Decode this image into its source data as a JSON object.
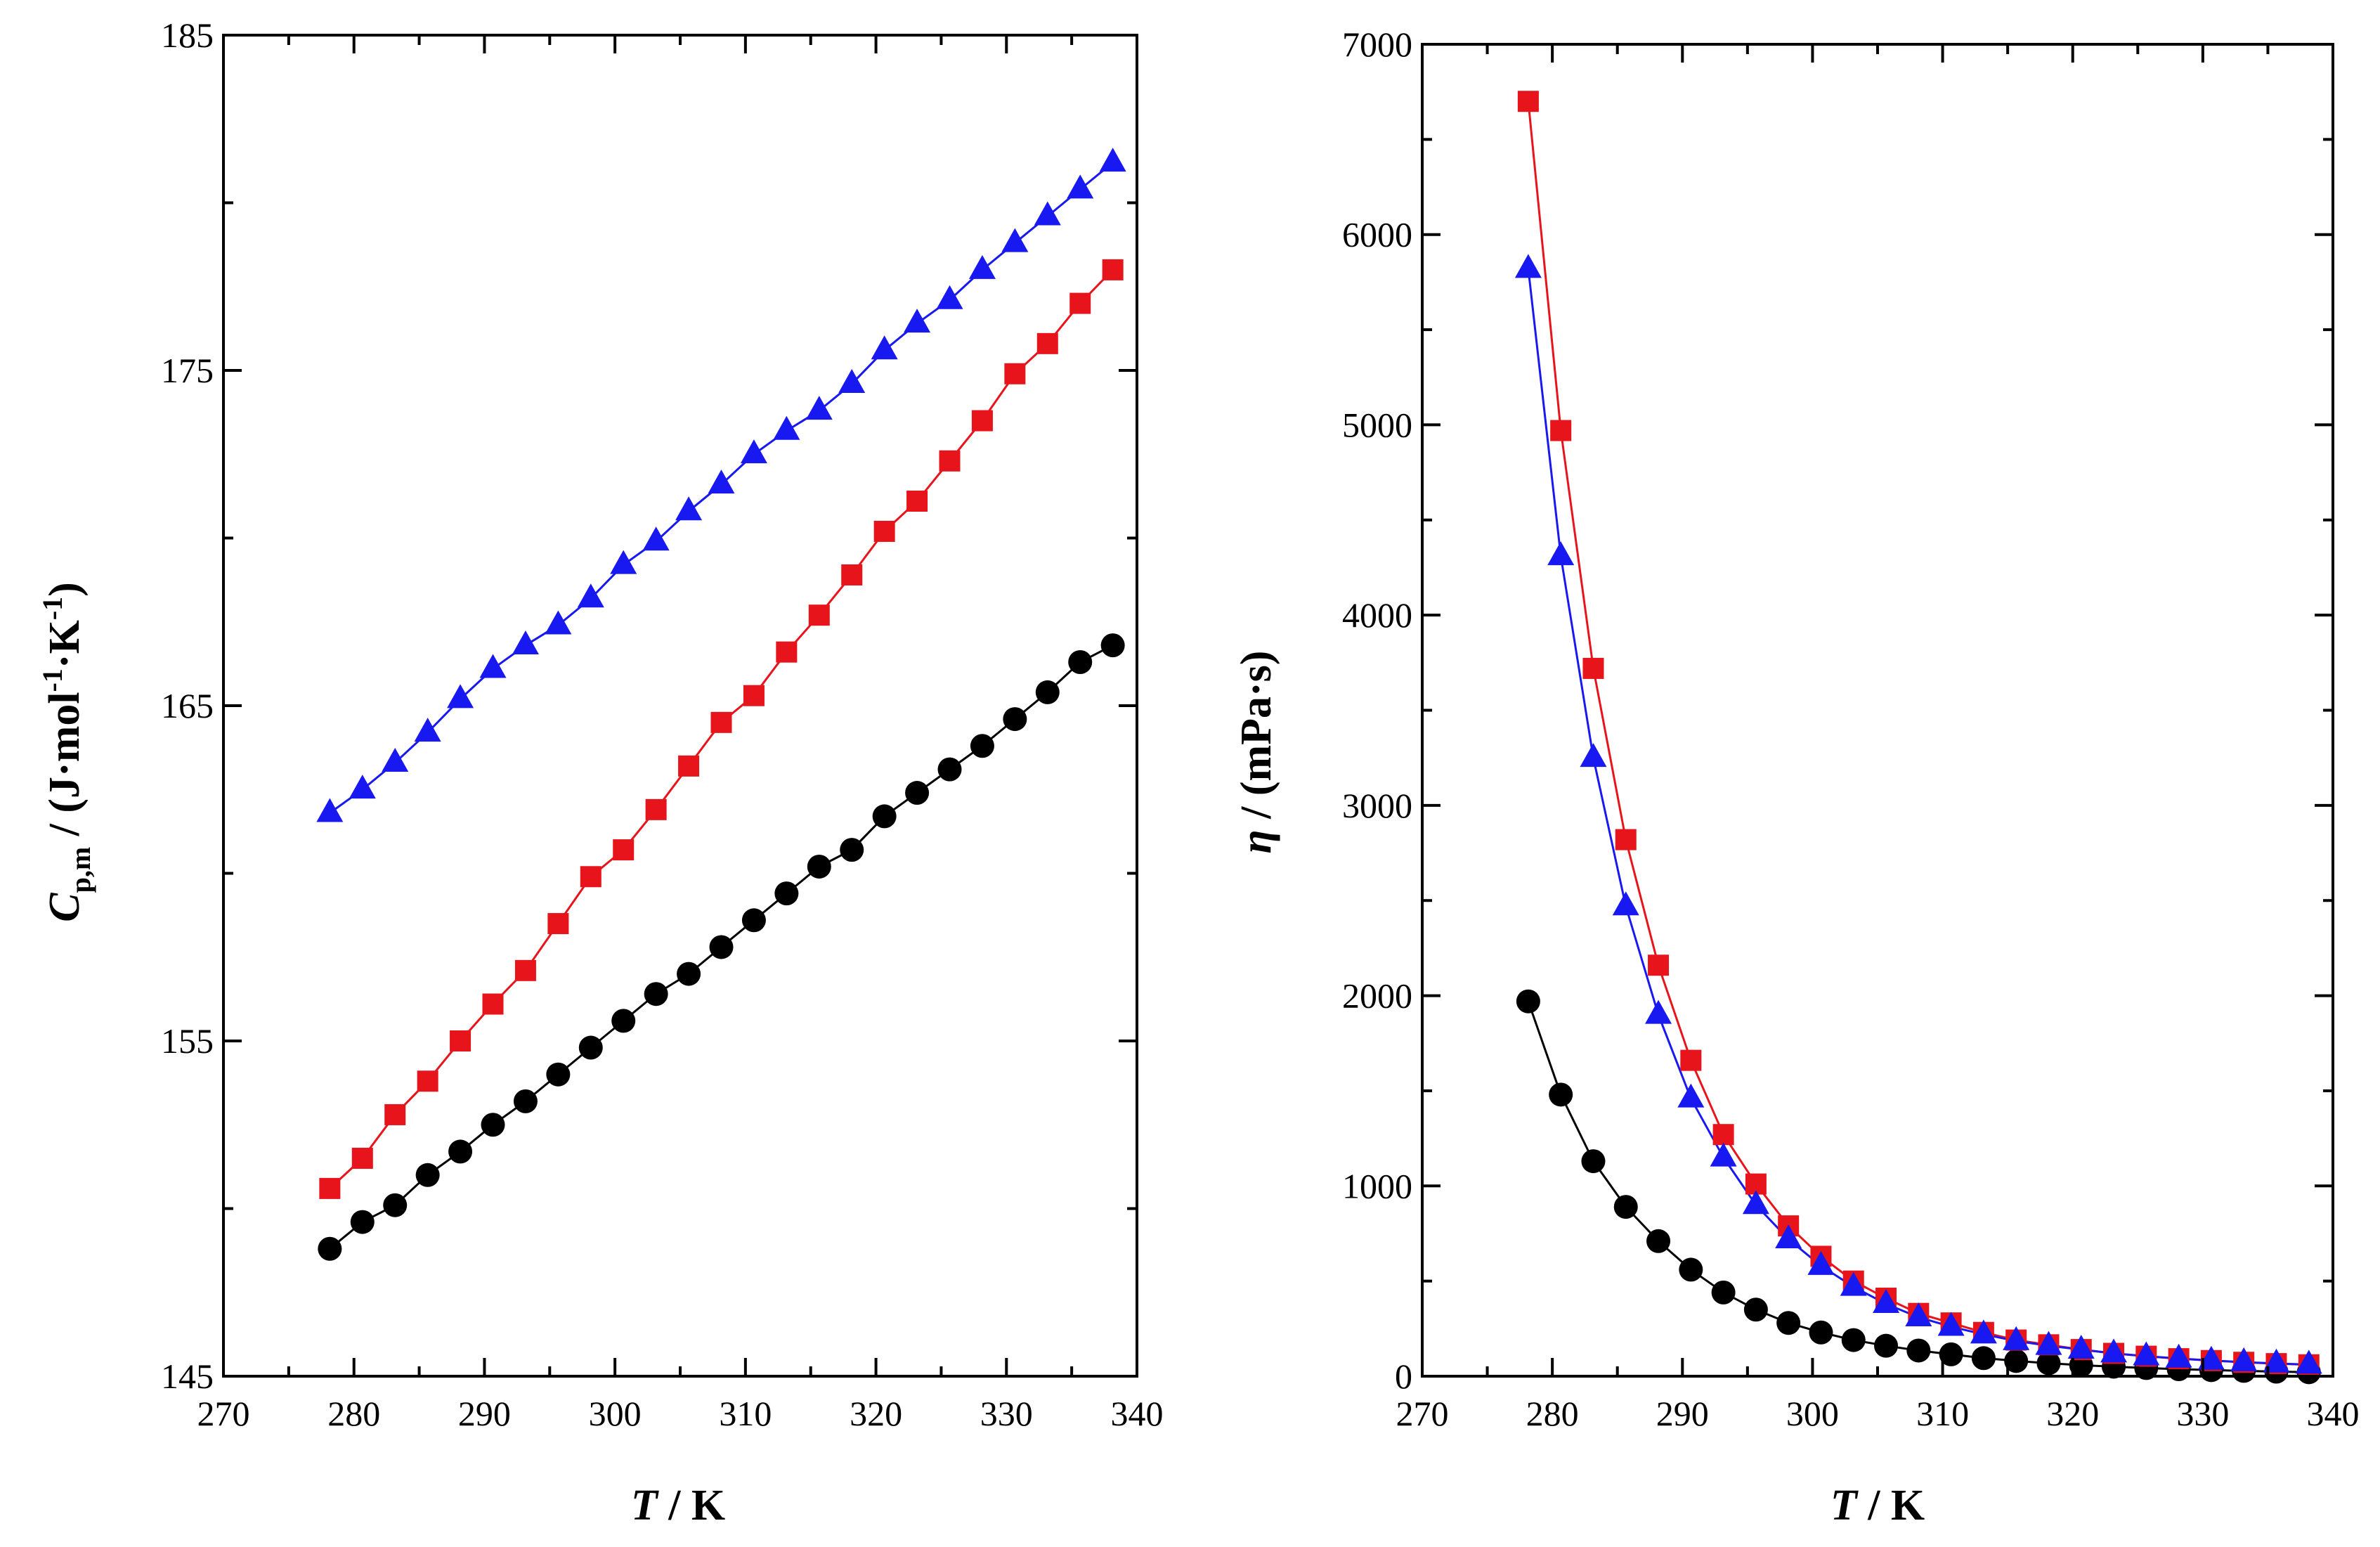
{
  "chart_data": [
    {
      "type": "scatter",
      "panel": "left",
      "title": "",
      "xlabel_italic": "T",
      "xlabel_rest": " / K",
      "ylabel_italic": "C",
      "ylabel_sub": "p,m",
      "ylabel_rest": " / (J·mol",
      "ylabel_exp1": "-1",
      "ylabel_mid": "·K",
      "ylabel_exp2": "-1",
      "ylabel_end": ")",
      "xlim": [
        270,
        340
      ],
      "ylim": [
        145,
        185
      ],
      "xticks": [
        270,
        280,
        290,
        300,
        310,
        320,
        330,
        340
      ],
      "yticks": [
        145,
        155,
        165,
        175,
        185
      ],
      "x": [
        278.15,
        280.65,
        283.15,
        285.65,
        288.15,
        290.65,
        293.15,
        295.65,
        298.15,
        300.65,
        303.15,
        305.65,
        308.15,
        310.65,
        313.15,
        315.65,
        318.15,
        320.65,
        323.15,
        325.65,
        328.15,
        330.65,
        333.15,
        335.65,
        338.15
      ],
      "series": [
        {
          "name": "black circles",
          "color": "#000000",
          "marker": "circle",
          "values": [
            148.8,
            149.6,
            150.1,
            151.0,
            151.7,
            152.5,
            153.2,
            154.0,
            154.8,
            155.6,
            156.4,
            157.0,
            157.8,
            158.6,
            159.4,
            160.2,
            160.7,
            161.7,
            162.4,
            163.1,
            163.8,
            164.6,
            165.4,
            166.3,
            166.8
          ]
        },
        {
          "name": "red squares",
          "color": "#e8141b",
          "marker": "square",
          "values": [
            150.6,
            151.5,
            152.8,
            153.8,
            155.0,
            156.1,
            157.1,
            158.5,
            159.9,
            160.7,
            161.9,
            163.2,
            164.5,
            165.3,
            166.6,
            167.7,
            168.9,
            170.2,
            171.1,
            172.3,
            173.5,
            174.9,
            175.8,
            177.0,
            178.0
          ]
        },
        {
          "name": "blue triangles",
          "color": "#1818f0",
          "marker": "triangle",
          "values": [
            161.8,
            162.5,
            163.3,
            164.2,
            165.2,
            166.1,
            166.8,
            167.4,
            168.2,
            169.2,
            169.9,
            170.8,
            171.6,
            172.5,
            173.2,
            173.8,
            174.6,
            175.6,
            176.4,
            177.1,
            178.0,
            178.8,
            179.6,
            180.4,
            181.2
          ]
        }
      ]
    },
    {
      "type": "scatter",
      "panel": "right",
      "title": "",
      "xlabel_italic": "T",
      "xlabel_rest": " / K",
      "ylabel_italic": "η",
      "ylabel_rest": " / (mPa·s)",
      "xlim": [
        270,
        340
      ],
      "ylim": [
        0,
        7000
      ],
      "xticks": [
        270,
        280,
        290,
        300,
        310,
        320,
        330,
        340
      ],
      "yticks": [
        0,
        1000,
        2000,
        3000,
        4000,
        5000,
        6000,
        7000
      ],
      "x": [
        278.15,
        280.65,
        283.15,
        285.65,
        288.15,
        290.65,
        293.15,
        295.65,
        298.15,
        300.65,
        303.15,
        305.65,
        308.15,
        310.65,
        313.15,
        315.65,
        318.15,
        320.65,
        323.15,
        325.65,
        328.15,
        330.65,
        333.15,
        335.65,
        338.15
      ],
      "series": [
        {
          "name": "black circles",
          "color": "#000000",
          "marker": "circle",
          "values": [
            1970,
            1480,
            1130,
            890,
            710,
            560,
            440,
            350,
            280,
            230,
            190,
            160,
            135,
            115,
            95,
            80,
            68,
            58,
            50,
            43,
            37,
            32,
            28,
            24,
            21
          ]
        },
        {
          "name": "red squares",
          "color": "#e8141b",
          "marker": "square",
          "values": [
            6700,
            4970,
            3720,
            2820,
            2160,
            1660,
            1270,
            1010,
            790,
            630,
            500,
            410,
            330,
            280,
            230,
            190,
            165,
            140,
            120,
            105,
            92,
            82,
            73,
            66,
            60
          ]
        },
        {
          "name": "blue triangles",
          "color": "#1818f0",
          "marker": "triangle",
          "values": [
            5820,
            4310,
            3250,
            2470,
            1900,
            1460,
            1150,
            900,
            720,
            580,
            470,
            380,
            310,
            260,
            220,
            185,
            160,
            140,
            120,
            105,
            93,
            82,
            74,
            67,
            61
          ]
        }
      ]
    }
  ]
}
